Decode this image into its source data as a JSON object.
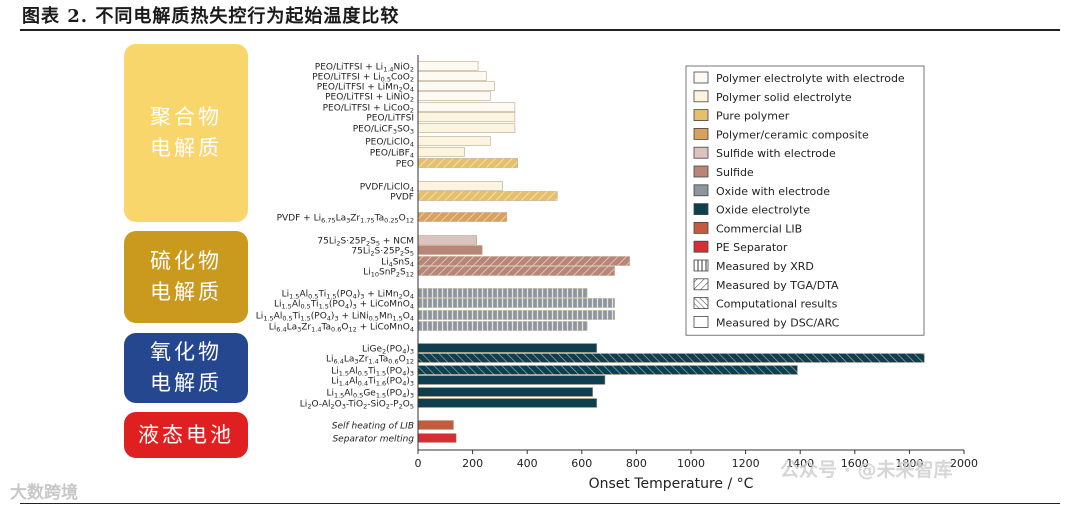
{
  "figure_title": "图表 2. 不同电解质热失控行为起始温度比较",
  "watermark_left": "大数跨境",
  "watermark_right": "公众号 · @未来智库",
  "categories_groups": [
    {
      "label": "聚合物\n电解质",
      "color": "#f9d66b",
      "text_color": "#ffffff"
    },
    {
      "label": "硫化物\n电解质",
      "color": "#c99a1e",
      "text_color": "#ffffff"
    },
    {
      "label": "氧化物\n电解质",
      "color": "#25478f",
      "text_color": "#ffffff"
    },
    {
      "label": "液态电池",
      "color": "#e02020",
      "text_color": "#ffffff"
    }
  ],
  "legend_items": [
    {
      "label": "Polymer electrolyte with electrode",
      "fill": "#fdfaf3",
      "pattern": "none"
    },
    {
      "label": "Polymer solid electrolyte",
      "fill": "#fcf4de",
      "pattern": "none"
    },
    {
      "label": "Pure polymer",
      "fill": "#e6bf6b",
      "pattern": "none"
    },
    {
      "label": "Polymer/ceramic composite",
      "fill": "#d9a05f",
      "pattern": "none"
    },
    {
      "label": "Sulfide with electrode",
      "fill": "#dcc3c0",
      "pattern": "none"
    },
    {
      "label": "Sulfide",
      "fill": "#b98577",
      "pattern": "none"
    },
    {
      "label": "Oxide with electrode",
      "fill": "#8e959c",
      "pattern": "none"
    },
    {
      "label": "Oxide electrolyte",
      "fill": "#0f3e4f",
      "pattern": "none"
    },
    {
      "label": "Commercial LIB",
      "fill": "#c55a3c",
      "pattern": "none"
    },
    {
      "label": "PE Separator",
      "fill": "#d42f37",
      "pattern": "none"
    },
    {
      "label": "Measured by XRD",
      "fill": "#ffffff",
      "pattern": "vertical"
    },
    {
      "label": "Measured by TGA/DTA",
      "fill": "#ffffff",
      "pattern": "diagonal"
    },
    {
      "label": "Computational results",
      "fill": "#ffffff",
      "pattern": "backdiag"
    },
    {
      "label": "Measured by DSC/ARC",
      "fill": "#ffffff",
      "pattern": "none"
    }
  ],
  "chart_data": {
    "type": "bar",
    "orientation": "horizontal",
    "xlabel": "Onset Temperature / °C",
    "xlim": [
      0,
      2000
    ],
    "xticks": [
      0,
      200,
      400,
      600,
      800,
      1000,
      1200,
      1400,
      1600,
      1800,
      2000
    ],
    "bars": [
      {
        "label": "PEO/LiTFSI + Li1.4NiO2",
        "value": 220,
        "fill": "#fdfaf3",
        "pattern": "none"
      },
      {
        "label": "PEO/LiTFSI + Li0.5CoO2",
        "value": 250,
        "fill": "#fdfaf3",
        "pattern": "none"
      },
      {
        "label": "PEO/LiTFSI + LiMn2O4",
        "value": 280,
        "fill": "#fdfaf3",
        "pattern": "none"
      },
      {
        "label": "PEO/LiTFSI + LiNiO2",
        "value": 265,
        "fill": "#fdfaf3",
        "pattern": "none"
      },
      {
        "label": "PEO/LiTFSI + LiCoO2",
        "value": 355,
        "fill": "#fdfaf3",
        "pattern": "none"
      },
      {
        "label": "PEO/LiTFSI",
        "value": 355,
        "fill": "#fcf4de",
        "pattern": "none"
      },
      {
        "label": "PEO/LiCF3SO3",
        "value": 355,
        "fill": "#fcf4de",
        "pattern": "none"
      },
      {
        "label": "PEO/LiClO4",
        "value": 265,
        "fill": "#fcf4de",
        "pattern": "none"
      },
      {
        "label": "PEO/LiBF4",
        "value": 170,
        "fill": "#fcf4de",
        "pattern": "none"
      },
      {
        "label": "PEO",
        "value": 365,
        "fill": "#e6bf6b",
        "pattern": "diagonal"
      },
      {
        "label": "PVDF/LiClO4",
        "value": 310,
        "fill": "#fcf4de",
        "pattern": "none"
      },
      {
        "label": "PVDF",
        "value": 510,
        "fill": "#e6bf6b",
        "pattern": "diagonal"
      },
      {
        "label": "PVDF + Li6.75La3Zr1.75Ta0.25O12",
        "value": 325,
        "fill": "#d9a05f",
        "pattern": "diagonal"
      },
      {
        "label": "75Li2S·25P2S5 + NCM",
        "value": 215,
        "fill": "#dcc3c0",
        "pattern": "none"
      },
      {
        "label": "75Li2S·25P2S5",
        "value": 235,
        "fill": "#b98577",
        "pattern": "none"
      },
      {
        "label": "Li4SnS4",
        "value": 775,
        "fill": "#b98577",
        "pattern": "diagonal"
      },
      {
        "label": "Li10SnP2S12",
        "value": 720,
        "fill": "#b98577",
        "pattern": "diagonal"
      },
      {
        "label": "Li1.5Al0.5Ti1.5(PO4)3 + LiMn2O4",
        "value": 620,
        "fill": "#8e959c",
        "pattern": "vertical"
      },
      {
        "label": "Li1.5Al0.5Ti1.5(PO4)3 + LiCoMnO4",
        "value": 720,
        "fill": "#8e959c",
        "pattern": "vertical"
      },
      {
        "label": "Li1.5Al0.5Ti1.5(PO4)3 + LiNi0.5Mn1.5O4",
        "value": 720,
        "fill": "#8e959c",
        "pattern": "vertical"
      },
      {
        "label": "Li6.4La3Zr1.4Ta0.6O12 + LiCoMnO4",
        "value": 620,
        "fill": "#8e959c",
        "pattern": "vertical"
      },
      {
        "label": "LiGe2(PO4)3",
        "value": 655,
        "fill": "#0f3e4f",
        "pattern": "none"
      },
      {
        "label": "Li6.4La3Zr1.4Ta0.6O12",
        "value": 1855,
        "fill": "#0f3e4f",
        "pattern": "backdiag"
      },
      {
        "label": "Li1.5Al0.5Ti1.5(PO4)3",
        "value": 1390,
        "fill": "#0f3e4f",
        "pattern": "backdiag"
      },
      {
        "label": "Li1.4Al0.4Ti1.6(PO4)3",
        "value": 685,
        "fill": "#0f3e4f",
        "pattern": "none"
      },
      {
        "label": "Li1.5Al0.5Ge1.5(PO4)3",
        "value": 640,
        "fill": "#0f3e4f",
        "pattern": "none"
      },
      {
        "label": "Li2O-Al2O3-TiO2-SiO2-P2O5",
        "value": 655,
        "fill": "#0f3e4f",
        "pattern": "none"
      },
      {
        "label": "Self heating of LIB",
        "value": 130,
        "fill": "#c55a3c",
        "pattern": "none"
      },
      {
        "label": "Separator melting",
        "value": 140,
        "fill": "#d42f37",
        "pattern": "none"
      }
    ]
  }
}
